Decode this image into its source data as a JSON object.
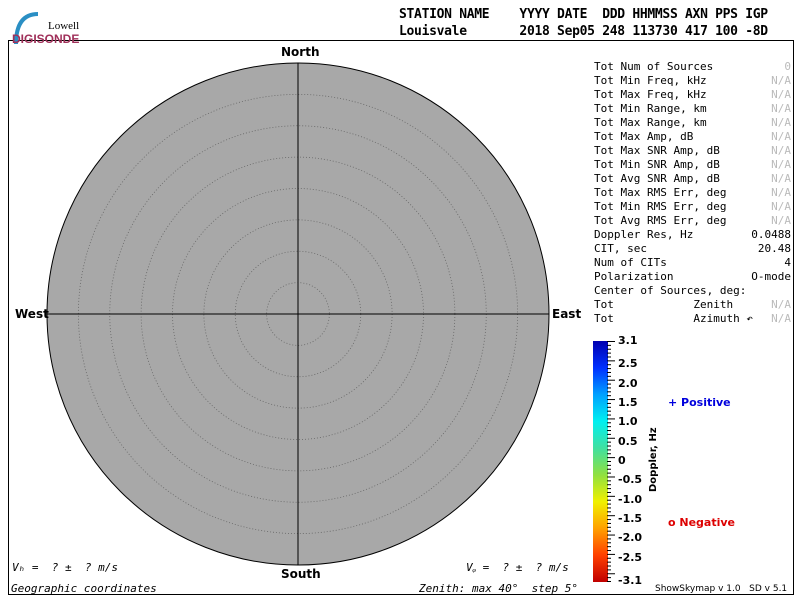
{
  "logo": {
    "line1": "Lowell",
    "line2": "DIGISONDE"
  },
  "header": {
    "labels": "STATION NAME    YYYY DATE  DDD HHMMSS AXN PPS IGP",
    "values": "Louisvale       2018 Sep05 248 113730 417 100 -8D"
  },
  "plot": {
    "north": "North",
    "south": "South",
    "east": "East",
    "west": "West",
    "zenith_max_deg": 40,
    "zenith_step_deg": 5
  },
  "stats": [
    {
      "label": "Tot Num of Sources",
      "value": "0",
      "na": true
    },
    {
      "label": "Tot Min Freq, kHz",
      "value": "N/A",
      "na": true
    },
    {
      "label": "Tot Max Freq, kHz",
      "value": "N/A",
      "na": true
    },
    {
      "label": "Tot Min Range, km",
      "value": "N/A",
      "na": true
    },
    {
      "label": "Tot Max Range, km",
      "value": "N/A",
      "na": true
    },
    {
      "label": "Tot Max Amp, dB",
      "value": "N/A",
      "na": true
    },
    {
      "label": "Tot Max SNR Amp, dB",
      "value": "N/A",
      "na": true
    },
    {
      "label": "Tot Min SNR Amp, dB",
      "value": "N/A",
      "na": true
    },
    {
      "label": "Tot Avg SNR Amp, dB",
      "value": "N/A",
      "na": true
    },
    {
      "label": "Tot Max RMS Err, deg",
      "value": "N/A",
      "na": true
    },
    {
      "label": "Tot Min RMS Err, deg",
      "value": "N/A",
      "na": true
    },
    {
      "label": "Tot Avg RMS Err, deg",
      "value": "N/A",
      "na": true
    },
    {
      "label": "Doppler Res, Hz",
      "value": "0.0488",
      "na": false
    },
    {
      "label": "CIT, sec",
      "value": "20.48",
      "na": false
    },
    {
      "label": "Num of CITs",
      "value": "4",
      "na": false
    },
    {
      "label": "Polarization",
      "value": "O-mode",
      "na": false
    },
    {
      "label": "Center of Sources, deg:",
      "value": "",
      "na": false
    },
    {
      "label": "Tot            Zenith",
      "value": "N/A",
      "na": true
    },
    {
      "label": "Tot            Azimuth ↶",
      "value": "N/A",
      "na": true
    }
  ],
  "colorbar": {
    "title": "Doppler, Hz",
    "ticks": [
      "3.1",
      "2.5",
      "2.0",
      "1.5",
      "1.0",
      "0.5",
      "0",
      "-0.5",
      "-1.0",
      "-1.5",
      "-2.0",
      "-2.5",
      "-3.1"
    ]
  },
  "legend": {
    "positive": "+ Positive",
    "negative": "o Negative",
    "positive_color": "#0000dd",
    "negative_color": "#dd0000"
  },
  "footer": {
    "vh": "Vₕ =  ? ±  ? m/s",
    "vz": "Vᵩ =  ? ±  ? m/s",
    "coords": "Geographic coordinates",
    "zenith": "Zenith: max 40°  step 5°",
    "version": "ShowSkymap v 1.0   SD v 5.1"
  }
}
